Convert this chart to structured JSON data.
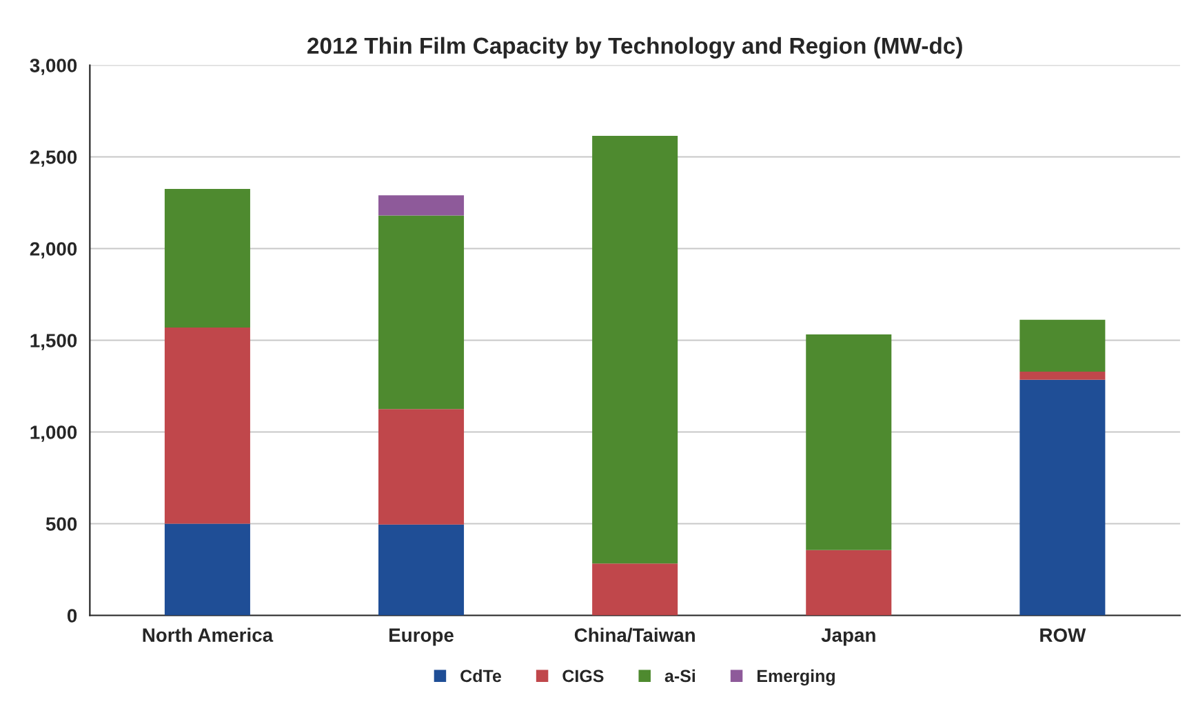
{
  "chart_data": {
    "type": "bar",
    "title": "2012 Thin Film Capacity by Technology and Region (MW-dc)",
    "categories": [
      "North America",
      "Europe",
      "China/Taiwan",
      "Japan",
      "ROW"
    ],
    "stacked": true,
    "series": [
      {
        "name": "CdTe",
        "color": "#1f4e96",
        "values": [
          500,
          495,
          null,
          null,
          1285
        ]
      },
      {
        "name": "CIGS",
        "color": "#c0474b",
        "values": [
          1070,
          630,
          283,
          356,
          44
        ]
      },
      {
        "name": "a-Si",
        "color": "#4e8a2f",
        "values": [
          755,
          1055,
          2332,
          1176,
          283
        ]
      },
      {
        "name": "Emerging",
        "color": "#8e5a9a",
        "values": [
          null,
          110,
          null,
          null,
          null
        ]
      }
    ],
    "ylim": [
      0,
      3000
    ],
    "yticks": [
      0,
      {
        "value": 500,
        "label": "500"
      },
      {
        "value": 1000,
        "label": "1,000"
      },
      {
        "value": 1500,
        "label": "1,500"
      },
      {
        "value": 2000,
        "label": "2,000"
      },
      {
        "value": 2500,
        "label": "2,500"
      },
      {
        "value": 3000,
        "label": "3,000"
      }
    ],
    "grid": "y",
    "legend": "bottom"
  }
}
